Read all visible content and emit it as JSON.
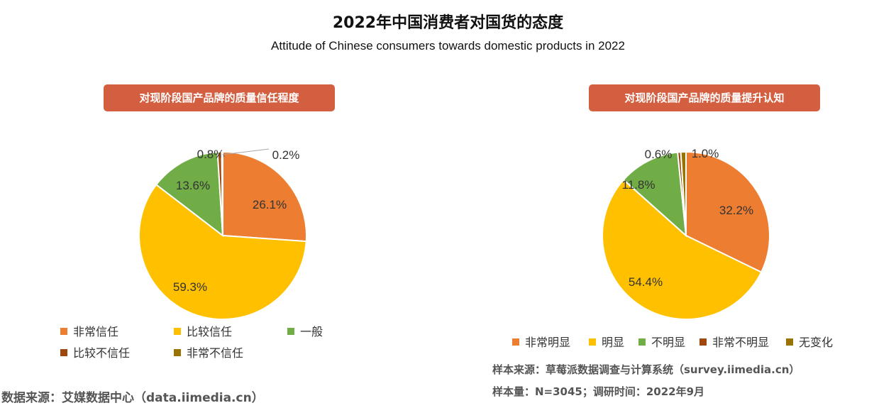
{
  "header": {
    "title": "2022年中国消费者对国货的态度",
    "subtitle": "Attitude of Chinese consumers towards domestic products in 2022"
  },
  "chart_data": [
    {
      "type": "pie",
      "title": "对现阶段国产品牌的质量信任程度",
      "categories": [
        "非常信任",
        "比较信任",
        "一般",
        "比较不信任",
        "非常不信任"
      ],
      "values": [
        26.1,
        59.3,
        13.6,
        0.8,
        0.2
      ],
      "labels": [
        "26.1%",
        "59.3%",
        "13.6%",
        "0.8%",
        "0.2%"
      ],
      "colors": [
        "#ed7d31",
        "#ffc000",
        "#70ad47",
        "#9e480e",
        "#997300"
      ],
      "legend": "bottom"
    },
    {
      "type": "pie",
      "title": "对现阶段国产品牌的质量提升认知",
      "categories": [
        "非常明显",
        "明显",
        "不明显",
        "非常不明显",
        "无变化"
      ],
      "values": [
        32.2,
        54.4,
        11.8,
        0.6,
        1.0
      ],
      "labels": [
        "32.2%",
        "54.4%",
        "11.8%",
        "0.6%",
        "1.0%"
      ],
      "colors": [
        "#ed7d31",
        "#ffc000",
        "#70ad47",
        "#9e480e",
        "#997300"
      ],
      "legend": "bottom"
    }
  ],
  "sources": {
    "left": "数据来源：艾媒数据中心（data.iimedia.cn）",
    "right_line1": "样本来源：草莓派数据调查与计算系统（survey.iimedia.cn）",
    "right_line2": "样本量：N=3045；调研时间：2022年9月"
  }
}
